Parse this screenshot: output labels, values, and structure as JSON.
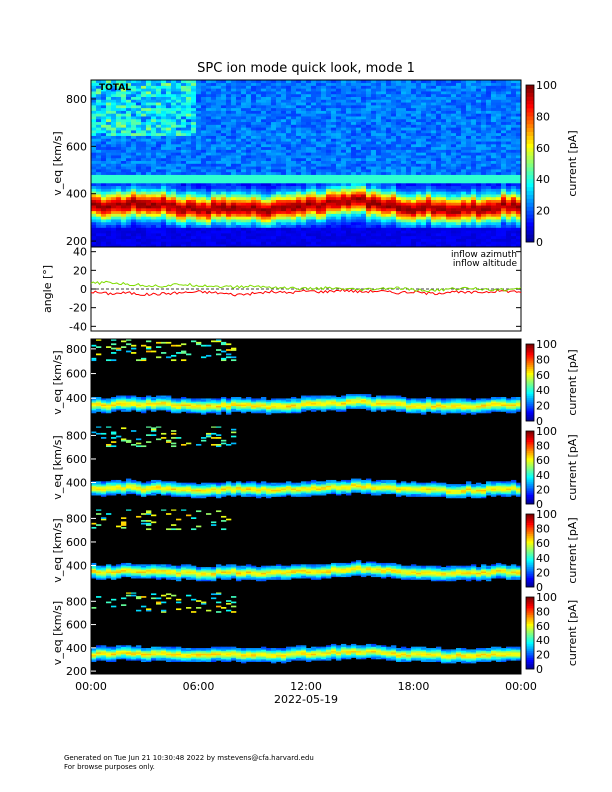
{
  "title": "SPC ion mode quick look, mode 1",
  "footer": {
    "line1": "Generated on Tue Jun 21 10:30:48 2022 by mstevens@cfa.harvard.edu",
    "line2": "For browse purposes only."
  },
  "colors": {
    "azimuth": "#ff0000",
    "altitude": "#7fdd00",
    "background_spectrogram": "#000000"
  },
  "chart_data": [
    {
      "type": "heatmap",
      "label": "TOTAL",
      "ylabel": "v_eq [km/s]",
      "ylim": [
        175,
        880
      ],
      "yticks": [
        200,
        400,
        600,
        800
      ],
      "colorbar": {
        "label": "current [pA]",
        "range": [
          0,
          100
        ],
        "ticks": [
          0,
          20,
          40,
          60,
          80,
          100
        ]
      },
      "bulk_speed_kms": {
        "x_hours": [
          0,
          1,
          2,
          3,
          4,
          5,
          6,
          7,
          8,
          9,
          10,
          11,
          12,
          13,
          14,
          15,
          16,
          17,
          18,
          19,
          20,
          21,
          22,
          23,
          24
        ],
        "v": [
          350,
          345,
          360,
          350,
          355,
          340,
          335,
          340,
          345,
          340,
          335,
          345,
          350,
          355,
          365,
          370,
          360,
          350,
          340,
          345,
          330,
          335,
          340,
          350,
          345
        ]
      }
    },
    {
      "type": "line",
      "ylabel": "angle [°]",
      "ylim": [
        -45,
        45
      ],
      "yticks": [
        -40,
        -20,
        0,
        20,
        40
      ],
      "grid": false,
      "legend": "top-right",
      "series": [
        {
          "name": "inflow azimuth",
          "color": "#ff0000",
          "x_hours": [
            0,
            1,
            2,
            3,
            4,
            5,
            6,
            7,
            8,
            9,
            10,
            11,
            12,
            13,
            14,
            15,
            16,
            17,
            18,
            19,
            20,
            21,
            22,
            23,
            24
          ],
          "values": [
            -3,
            -5,
            -4,
            -6,
            -5,
            -4,
            -3,
            -4,
            -6,
            -5,
            -3,
            -4,
            -2,
            -3,
            -1,
            -3,
            -2,
            -4,
            -3,
            -5,
            -3,
            -4,
            -3,
            -2,
            -3
          ]
        },
        {
          "name": "inflow altitude",
          "color": "#7fdd00",
          "x_hours": [
            0,
            1,
            2,
            3,
            4,
            5,
            6,
            7,
            8,
            9,
            10,
            11,
            12,
            13,
            14,
            15,
            16,
            17,
            18,
            19,
            20,
            21,
            22,
            23,
            24
          ],
          "values": [
            6,
            7,
            5,
            4,
            3,
            5,
            4,
            3,
            2,
            3,
            2,
            1,
            0,
            1,
            0,
            -1,
            0,
            1,
            -1,
            -2,
            0,
            1,
            0,
            -1,
            0
          ]
        }
      ]
    },
    {
      "type": "heatmap",
      "label": "",
      "ylabel": "v_eq [km/s]",
      "ylim": [
        175,
        880
      ],
      "yticks": [
        400,
        600,
        800
      ],
      "colorbar": {
        "label": "current [pA]",
        "range": [
          0,
          100
        ],
        "ticks": [
          0,
          20,
          40,
          60,
          80,
          100
        ]
      }
    },
    {
      "type": "heatmap",
      "label": "",
      "ylabel": "v_eq [km/s]",
      "ylim": [
        175,
        880
      ],
      "yticks": [
        400,
        600,
        800
      ],
      "colorbar": {
        "label": "current [pA]",
        "range": [
          0,
          100
        ],
        "ticks": [
          0,
          20,
          40,
          60,
          80,
          100
        ]
      }
    },
    {
      "type": "heatmap",
      "label": "",
      "ylabel": "v_eq [km/s]",
      "ylim": [
        175,
        880
      ],
      "yticks": [
        400,
        600,
        800
      ],
      "colorbar": {
        "label": "current [pA]",
        "range": [
          0,
          100
        ],
        "ticks": [
          0,
          20,
          40,
          60,
          80,
          100
        ]
      }
    },
    {
      "type": "heatmap",
      "label": "",
      "ylabel": "v_eq [km/s]",
      "ylim": [
        175,
        880
      ],
      "yticks": [
        200,
        400,
        600,
        800
      ],
      "colorbar": {
        "label": "current [pA]",
        "range": [
          0,
          100
        ],
        "ticks": [
          0,
          20,
          40,
          60,
          80,
          100
        ]
      }
    }
  ],
  "time_axis": {
    "ticks": [
      "00:00",
      "06:00",
      "12:00",
      "18:00",
      "00:00"
    ],
    "tick_hours": [
      0,
      6,
      12,
      18,
      24
    ],
    "date": "2022-05-19"
  }
}
